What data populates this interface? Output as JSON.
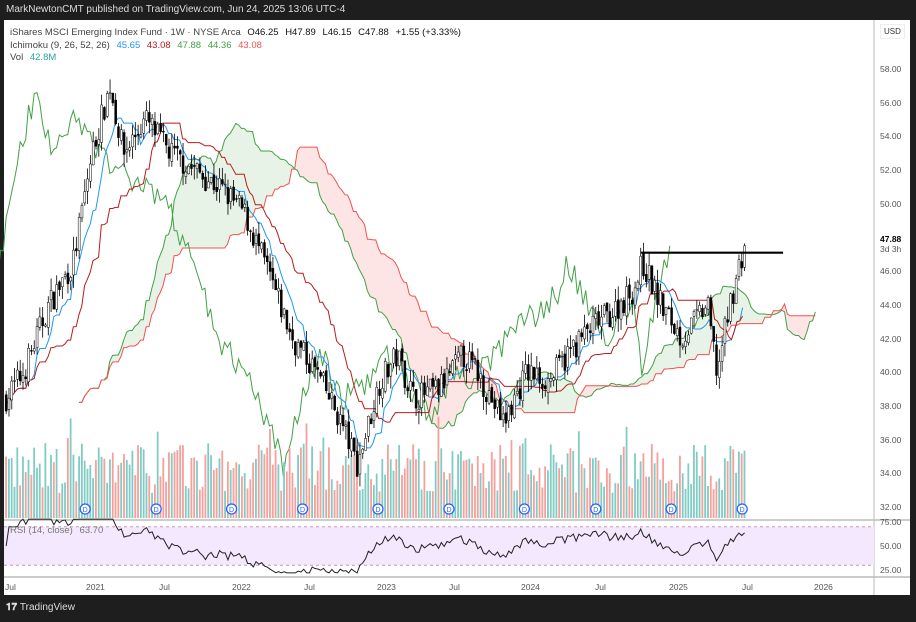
{
  "header": {
    "publisher": "MarkNewtonCMT published on TradingView.com, Jun 24, 2025 13:06 UTC-4"
  },
  "legend": {
    "symbol": "iShares MSCI Emerging Index Fund · 1W · NYSE Arca",
    "open": "O46.25",
    "high": "H47.89",
    "low": "L46.15",
    "close": "C47.88",
    "change": "+1.55 (+3.33%)",
    "ichimoku_label": "Ichimoku (9, 26, 52, 26)",
    "ichimoku_values": [
      "45.65",
      "43.08",
      "47.88",
      "44.36",
      "43.08"
    ],
    "vol_label": "Vol",
    "vol_value": "42.8M",
    "rsi_label": "RSI (14, close)",
    "rsi_value": "63.70"
  },
  "price_axis": {
    "currency": "USD",
    "ticks": [
      "58.00",
      "56.00",
      "54.00",
      "52.00",
      "50.00",
      "46.00",
      "44.00",
      "42.00",
      "40.00",
      "38.00",
      "36.00",
      "34.00",
      "32.00"
    ],
    "last_price": "47.88",
    "countdown": "3d 3h"
  },
  "rsi_axis": {
    "ticks": [
      "75.00",
      "50.00",
      "25.00"
    ]
  },
  "time_axis": {
    "ticks": [
      "Jul",
      "2021",
      "Jul",
      "2022",
      "Jul",
      "2023",
      "Jul",
      "2024",
      "Jul",
      "2025",
      "Jul",
      "2026"
    ]
  },
  "footer": {
    "brand": "TradingView"
  },
  "colors": {
    "up": "#ffffff",
    "down": "#000000",
    "tenkan": "#2196f3",
    "kijun": "#b71c1c",
    "spanA": "#43a047",
    "spanB": "#ef5350",
    "lagging": "#43a047",
    "vol_up": "#80cbc4",
    "vol_down": "#f4a09c",
    "rsi": "#222222",
    "rsi_band": "#f3e8fd"
  },
  "chart_data": {
    "type": "candlestick",
    "interval": "1W",
    "ylim": [
      31.5,
      59
    ],
    "close_path": [
      [
        "2020-06-01",
        38.5
      ],
      [
        "2020-07-15",
        40
      ],
      [
        "2020-09-15",
        44
      ],
      [
        "2020-11-15",
        46.5
      ],
      [
        "2021-01-01",
        53
      ],
      [
        "2021-02-15",
        57
      ],
      [
        "2021-03-20",
        53
      ],
      [
        "2021-05-15",
        55
      ],
      [
        "2021-07-15",
        53
      ],
      [
        "2021-09-15",
        52
      ],
      [
        "2021-11-15",
        51
      ],
      [
        "2022-01-15",
        49.5
      ],
      [
        "2022-03-15",
        46
      ],
      [
        "2022-05-15",
        42
      ],
      [
        "2022-07-15",
        40
      ],
      [
        "2022-09-15",
        37
      ],
      [
        "2022-10-25",
        34.5
      ],
      [
        "2022-12-20",
        39.5
      ],
      [
        "2023-02-01",
        41
      ],
      [
        "2023-03-15",
        38.5
      ],
      [
        "2023-05-15",
        39
      ],
      [
        "2023-07-15",
        41
      ],
      [
        "2023-08-20",
        40
      ],
      [
        "2023-10-25",
        37
      ],
      [
        "2023-12-20",
        40
      ],
      [
        "2024-02-15",
        39.5
      ],
      [
        "2024-04-15",
        41.5
      ],
      [
        "2024-06-15",
        43
      ],
      [
        "2024-07-20",
        43.5
      ],
      [
        "2024-09-15",
        45
      ],
      [
        "2024-10-05",
        46.5
      ],
      [
        "2024-11-20",
        44
      ],
      [
        "2025-01-10",
        42
      ],
      [
        "2025-03-15",
        44
      ],
      [
        "2025-04-08",
        40
      ],
      [
        "2025-05-15",
        44.5
      ],
      [
        "2025-06-20",
        47.88
      ]
    ],
    "resistance_line": {
      "value": 47.1,
      "from": "2024-10-01",
      "to": "2025-09-20"
    },
    "dividend_marker": "D",
    "dividends": [
      "2020-12-15",
      "2021-06-10",
      "2021-12-15",
      "2022-06-10",
      "2022-12-15",
      "2023-06-10",
      "2023-12-15",
      "2024-06-10",
      "2024-12-15",
      "2025-06-10"
    ],
    "rsi_last": 63.7,
    "rsi_levels": [
      70,
      30
    ]
  }
}
